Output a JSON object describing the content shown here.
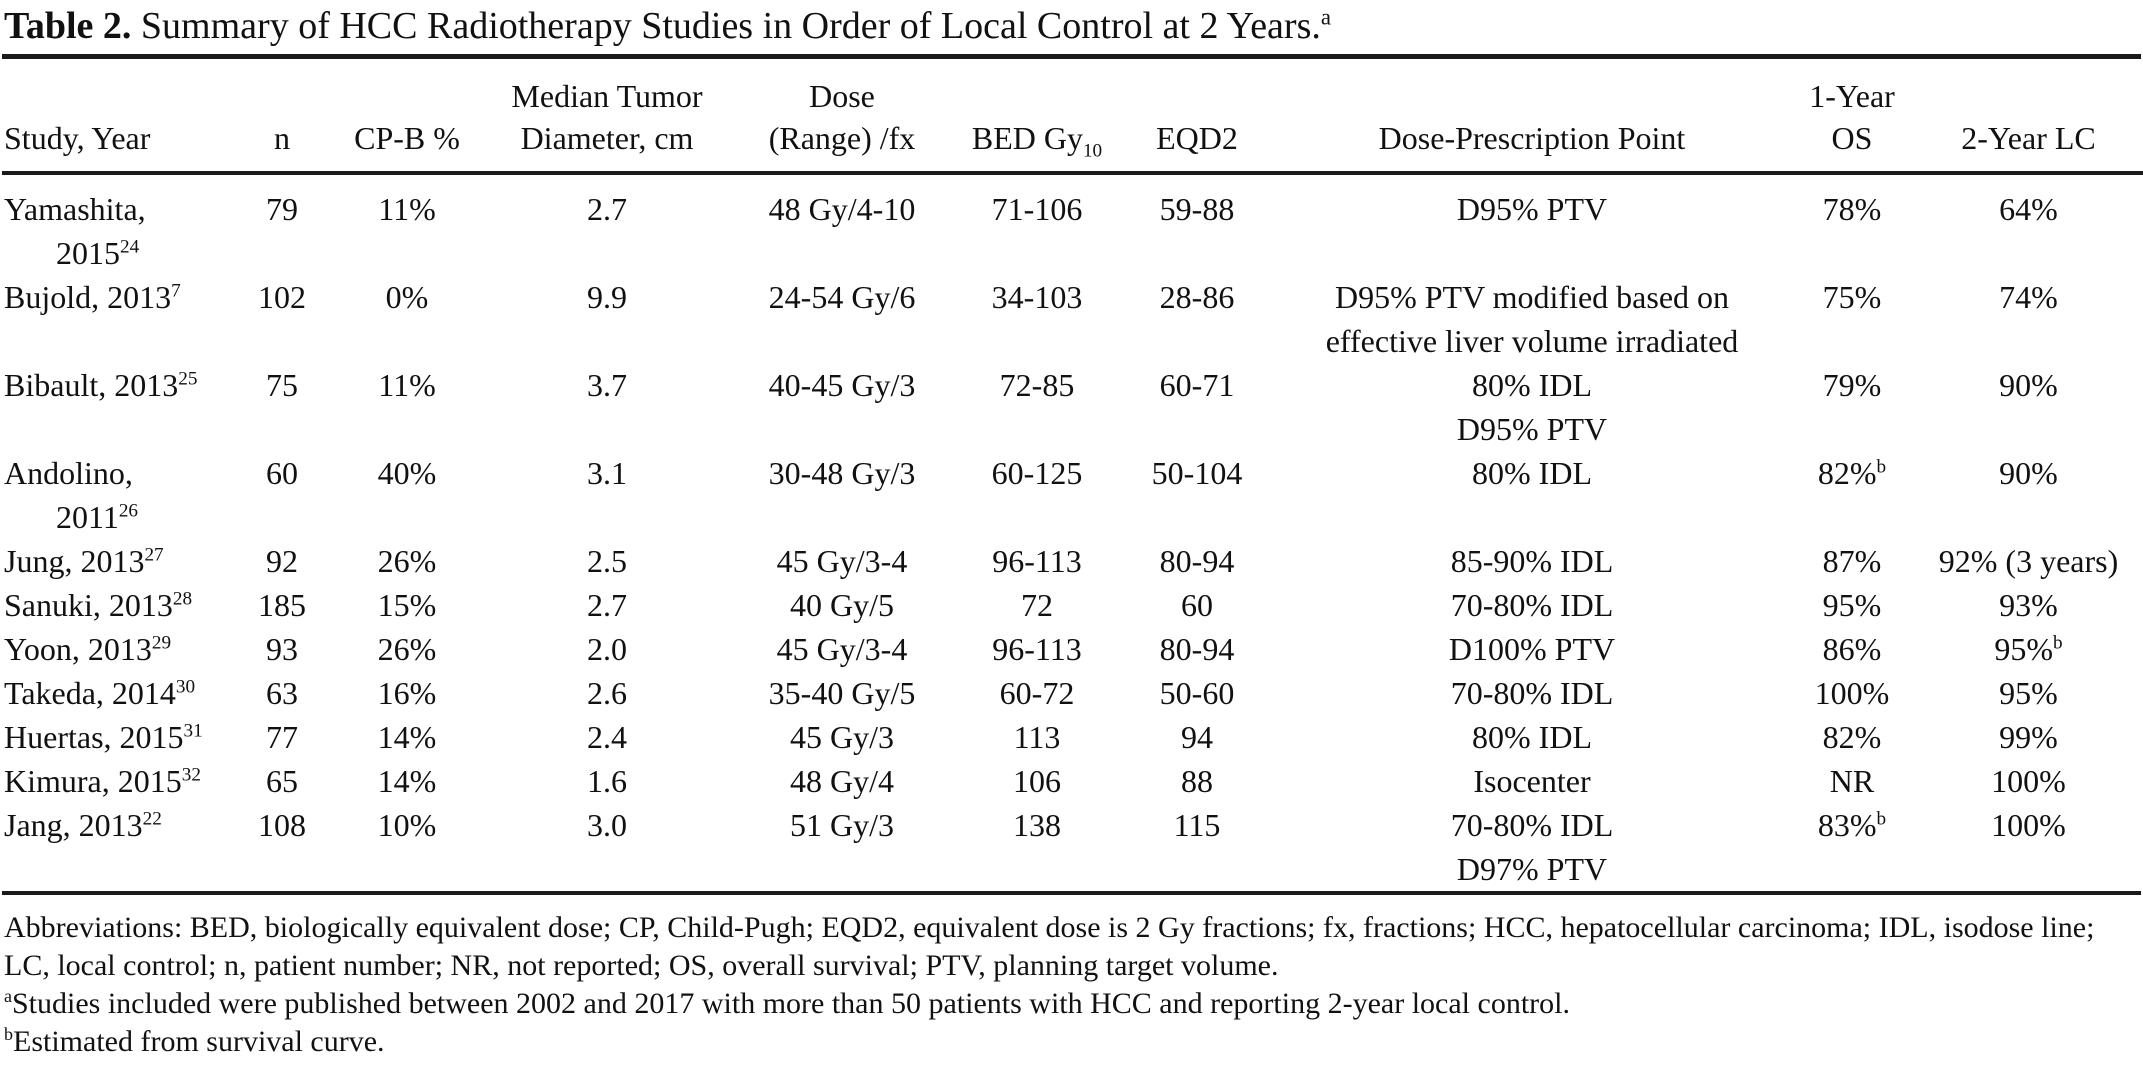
{
  "title": {
    "label": "Table 2.",
    "text": " Summary of HCC Radiotherapy Studies in Order of Local Control at 2 Years.",
    "sup": "a"
  },
  "header": {
    "study": "Study, Year",
    "n": "n",
    "cpb": "CP-B %",
    "diameter_line1": "Median Tumor",
    "diameter_line2": "Diameter, cm",
    "dose_line1": "Dose",
    "dose_line2": "(Range) /fx",
    "bed_main": "BED Gy",
    "bed_sub": "10",
    "eqd2": "EQD2",
    "prescription": "Dose-Prescription Point",
    "os_line1": "1-Year",
    "os_line2": "OS",
    "lc": "2-Year LC"
  },
  "table": {
    "rows": [
      {
        "study_lines": [
          "Yamashita,",
          "2015"
        ],
        "ref": "24",
        "n": "79",
        "cpb": "11%",
        "diameter": "2.7",
        "dose": "48 Gy/4-10",
        "bed": "71-106",
        "eqd2": "59-88",
        "prescription_lines": [
          "D95% PTV"
        ],
        "os": "78%",
        "os_sup": "",
        "lc": "64%",
        "lc_sup": ""
      },
      {
        "study_lines": [
          "Bujold, 2013"
        ],
        "ref": "7",
        "n": "102",
        "cpb": "0%",
        "diameter": "9.9",
        "dose": "24-54 Gy/6",
        "bed": "34-103",
        "eqd2": "28-86",
        "prescription_lines": [
          "D95% PTV modified based on",
          "effective liver volume irradiated"
        ],
        "os": "75%",
        "os_sup": "",
        "lc": "74%",
        "lc_sup": ""
      },
      {
        "study_lines": [
          "Bibault, 2013"
        ],
        "ref": "25",
        "n": "75",
        "cpb": "11%",
        "diameter": "3.7",
        "dose": "40-45 Gy/3",
        "bed": "72-85",
        "eqd2": "60-71",
        "prescription_lines": [
          "80% IDL",
          "D95% PTV"
        ],
        "os": "79%",
        "os_sup": "",
        "lc": "90%",
        "lc_sup": ""
      },
      {
        "study_lines": [
          "Andolino,",
          "2011"
        ],
        "ref": "26",
        "n": "60",
        "cpb": "40%",
        "diameter": "3.1",
        "dose": "30-48 Gy/3",
        "bed": "60-125",
        "eqd2": "50-104",
        "prescription_lines": [
          "80% IDL"
        ],
        "os": "82%",
        "os_sup": "b",
        "lc": "90%",
        "lc_sup": ""
      },
      {
        "study_lines": [
          "Jung, 2013"
        ],
        "ref": "27",
        "n": "92",
        "cpb": "26%",
        "diameter": "2.5",
        "dose": "45 Gy/3-4",
        "bed": "96-113",
        "eqd2": "80-94",
        "prescription_lines": [
          "85-90% IDL"
        ],
        "os": "87%",
        "os_sup": "",
        "lc": "92% (3 years)",
        "lc_sup": ""
      },
      {
        "study_lines": [
          "Sanuki, 2013"
        ],
        "ref": "28",
        "n": "185",
        "cpb": "15%",
        "diameter": "2.7",
        "dose": "40 Gy/5",
        "bed": "72",
        "eqd2": "60",
        "prescription_lines": [
          "70-80% IDL"
        ],
        "os": "95%",
        "os_sup": "",
        "lc": "93%",
        "lc_sup": ""
      },
      {
        "study_lines": [
          "Yoon, 2013"
        ],
        "ref": "29",
        "n": "93",
        "cpb": "26%",
        "diameter": "2.0",
        "dose": "45 Gy/3-4",
        "bed": "96-113",
        "eqd2": "80-94",
        "prescription_lines": [
          "D100% PTV"
        ],
        "os": "86%",
        "os_sup": "",
        "lc": "95%",
        "lc_sup": "b"
      },
      {
        "study_lines": [
          "Takeda, 2014"
        ],
        "ref": "30",
        "n": "63",
        "cpb": "16%",
        "diameter": "2.6",
        "dose": "35-40 Gy/5",
        "bed": "60-72",
        "eqd2": "50-60",
        "prescription_lines": [
          "70-80% IDL"
        ],
        "os": "100%",
        "os_sup": "",
        "lc": "95%",
        "lc_sup": ""
      },
      {
        "study_lines": [
          "Huertas, 2015"
        ],
        "ref": "31",
        "n": "77",
        "cpb": "14%",
        "diameter": "2.4",
        "dose": "45 Gy/3",
        "bed": "113",
        "eqd2": "94",
        "prescription_lines": [
          "80% IDL"
        ],
        "os": "82%",
        "os_sup": "",
        "lc": "99%",
        "lc_sup": ""
      },
      {
        "study_lines": [
          "Kimura, 2015"
        ],
        "ref": "32",
        "n": "65",
        "cpb": "14%",
        "diameter": "1.6",
        "dose": "48 Gy/4",
        "bed": "106",
        "eqd2": "88",
        "prescription_lines": [
          "Isocenter"
        ],
        "os": "NR",
        "os_sup": "",
        "lc": "100%",
        "lc_sup": ""
      },
      {
        "study_lines": [
          "Jang, 2013"
        ],
        "ref": "22",
        "n": "108",
        "cpb": "10%",
        "diameter": "3.0",
        "dose": "51 Gy/3",
        "bed": "138",
        "eqd2": "115",
        "prescription_lines": [
          "70-80% IDL",
          "D97% PTV"
        ],
        "os": "83%",
        "os_sup": "b",
        "lc": "100%",
        "lc_sup": ""
      }
    ]
  },
  "footer": {
    "abbreviations": "Abbreviations: BED, biologically equivalent dose; CP, Child-Pugh; EQD2, equivalent dose is 2 Gy fractions; fx, fractions; HCC, hepatocellular carcinoma; IDL, isodose line; LC, local control; n, patient number; NR, not reported; OS, overall survival; PTV, planning target volume.",
    "note_a_sup": "a",
    "note_a": "Studies included were published between 2002 and 2017 with more than 50 patients with HCC and reporting 2-year local control.",
    "note_b_sup": "b",
    "note_b": "Estimated from survival curve."
  },
  "colors": {
    "text": "#111111",
    "rule": "#1a1a1a",
    "background": "#ffffff"
  }
}
